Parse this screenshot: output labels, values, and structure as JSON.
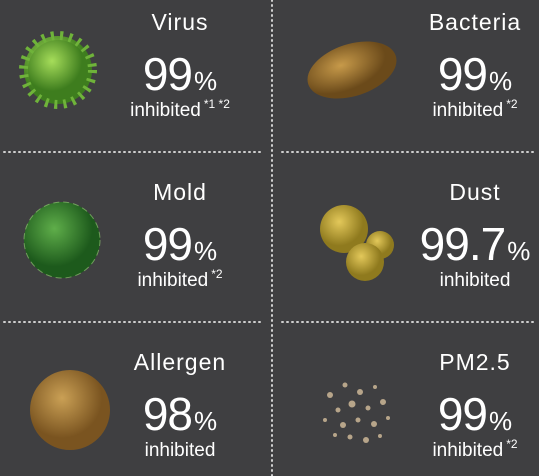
{
  "items": [
    {
      "name": "Virus",
      "value": 99,
      "unit": "%",
      "label": "inhibited",
      "footnote": "*1 *2"
    },
    {
      "name": "Bacteria",
      "value": 99,
      "unit": "%",
      "label": "inhibited",
      "footnote": "*2"
    },
    {
      "name": "Mold",
      "value": 99,
      "unit": "%",
      "label": "inhibited",
      "footnote": "*2"
    },
    {
      "name": "Dust",
      "value": 99.7,
      "unit": "%",
      "label": "inhibited"
    },
    {
      "name": "Allergen",
      "value": 98,
      "unit": "%",
      "label": "inhibited"
    },
    {
      "name": "PM2.5",
      "value": 99,
      "unit": "%",
      "label": "inhibited",
      "footnote": "*2"
    }
  ]
}
